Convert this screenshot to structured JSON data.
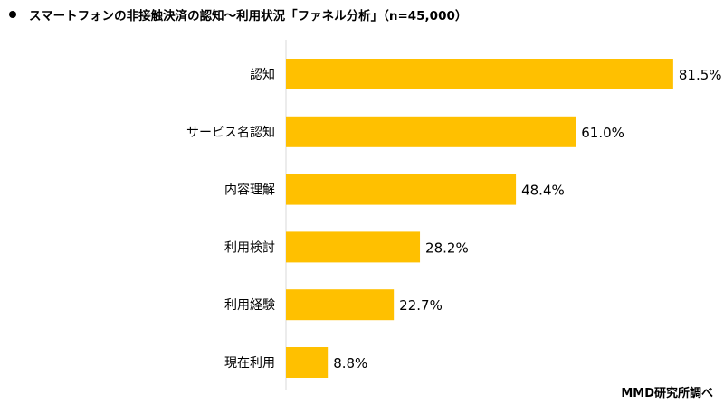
{
  "title": "スマートフォンの非接触決済の認知～利用状況「ファネル分析」（n=45,000）",
  "credit": "MMD研究所調べ",
  "chart_data": {
    "type": "bar",
    "orientation": "horizontal",
    "categories": [
      "認知",
      "サービス名認知",
      "内容理解",
      "利用検討",
      "利用経験",
      "現在利用"
    ],
    "values": [
      81.5,
      61.0,
      48.4,
      28.2,
      22.7,
      8.8
    ],
    "value_labels": [
      "81.5%",
      "61.0%",
      "48.4%",
      "28.2%",
      "22.7%",
      "8.8%"
    ],
    "xlim": [
      0,
      100
    ],
    "grid": false,
    "legend": "none",
    "bar_color": "#FFC000"
  }
}
